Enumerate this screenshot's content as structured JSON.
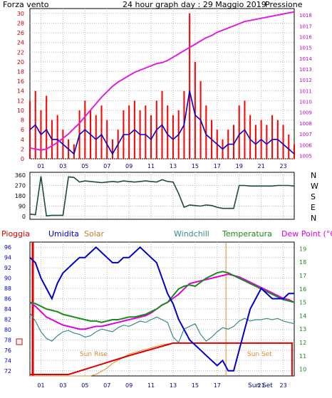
{
  "header": {
    "left_label": "Forza vento",
    "center_title": "24 hour graph day : 29 Maggio 2019",
    "right_label": "Pressione"
  },
  "compass": [
    "N",
    "W",
    "S",
    "E",
    "N"
  ],
  "bottom_legend": {
    "pioggia": "Pioggia",
    "umidita": "Umidita",
    "solar": "Solar",
    "windchill": "Windchill",
    "temperatura": "Temperatura",
    "dewpoint": "Dew Point (°C)"
  },
  "annotations": {
    "sunrise": "Sun Rise",
    "sunset": "Sun Set"
  },
  "colors": {
    "wind": "#ff0000",
    "wind_avg": "#0000cc",
    "pressure": "#e020e0",
    "direction": "#1f4a3a",
    "humidity": "#0000cc",
    "solar": "#e08a30",
    "windchill": "#3a8a8a",
    "temperature": "#1a8a1a",
    "dewpoint": "#e000e0",
    "rain": "#dd0000",
    "frame": "#000000"
  },
  "chart_data": [
    {
      "type": "line",
      "title": "24 hour graph day : 29 Maggio 2019",
      "x_tick_labels": [
        "01",
        "03",
        "05",
        "07",
        "09",
        "11",
        "13",
        "15",
        "17",
        "19",
        "21",
        "23"
      ],
      "y_left": {
        "label": "Forza vento",
        "ticks": [
          "0",
          "2",
          "4",
          "6",
          "8",
          "10",
          "12",
          "14",
          "16",
          "18",
          "20",
          "22",
          "24",
          "26",
          "28",
          "30"
        ],
        "ylim": [
          0,
          31
        ]
      },
      "y_right": {
        "label": "Pressione",
        "ticks": [
          "1005",
          "1006",
          "1007",
          "1008",
          "1009",
          "1010",
          "1011",
          "1012",
          "1013",
          "1014",
          "1015",
          "1016",
          "1017",
          "1018"
        ],
        "ylim": [
          1004.7,
          1018.6
        ]
      },
      "x": [
        0,
        0.5,
        1,
        1.5,
        2,
        2.5,
        3,
        3.5,
        4,
        4.5,
        5,
        5.5,
        6,
        6.5,
        7,
        7.5,
        8,
        8.5,
        9,
        9.5,
        10,
        10.5,
        11,
        11.5,
        12,
        12.5,
        13,
        13.5,
        14,
        14.5,
        15,
        15.5,
        16,
        16.5,
        17,
        17.5,
        18,
        18.5,
        19,
        19.5,
        20,
        20.5,
        21,
        21.5,
        22,
        22.5,
        23,
        23.5,
        24
      ],
      "series": [
        {
          "values": [
            12,
            14,
            10,
            13,
            8,
            9,
            6,
            4,
            3,
            10,
            12,
            10,
            9,
            11,
            8,
            4,
            6,
            10,
            11,
            12,
            10,
            11,
            9,
            12,
            14,
            11,
            9,
            10,
            14,
            30,
            20,
            16,
            11,
            8,
            6,
            4,
            6,
            7,
            11,
            12,
            9,
            7,
            8,
            7,
            9,
            8,
            7,
            5,
            3
          ]
        },
        {
          "values": [
            6,
            7,
            5,
            6,
            4,
            4,
            3,
            2,
            1,
            5,
            6,
            5,
            4,
            5,
            3,
            1,
            3,
            5,
            5,
            6,
            5,
            5,
            4,
            6,
            7,
            5,
            4,
            5,
            7,
            14,
            9,
            8,
            5,
            4,
            3,
            2,
            3,
            3,
            5,
            6,
            4,
            3,
            4,
            3,
            4,
            4,
            3,
            2,
            1
          ]
        },
        {
          "values": [
            1005.7,
            1005.6,
            1005.5,
            1005.6,
            1005.9,
            1006.2,
            1006.6,
            1007.0,
            1007.5,
            1008.0,
            1008.6,
            1009.2,
            1009.8,
            1010.4,
            1010.9,
            1011.4,
            1011.8,
            1012.1,
            1012.4,
            1012.7,
            1012.9,
            1013.1,
            1013.3,
            1013.5,
            1013.6,
            1013.8,
            1014.1,
            1014.4,
            1014.7,
            1015.0,
            1015.3,
            1015.6,
            1015.9,
            1016.1,
            1016.4,
            1016.6,
            1016.8,
            1017.0,
            1017.2,
            1017.4,
            1017.5,
            1017.6,
            1017.7,
            1017.8,
            1017.9,
            1018.0,
            1018.1,
            1018.2,
            1018.3
          ]
        }
      ]
    },
    {
      "type": "line",
      "y_ticks": [
        "0",
        "90",
        "180",
        "270",
        "360"
      ],
      "ylim": [
        0,
        360
      ],
      "x": [
        0,
        0.5,
        1,
        1.5,
        2,
        2.5,
        3,
        3.5,
        4,
        4.5,
        5,
        5.5,
        6,
        6.5,
        7,
        7.5,
        8,
        8.5,
        9,
        9.5,
        10,
        10.5,
        11,
        11.5,
        12,
        12.5,
        13,
        13.5,
        14,
        14.5,
        15,
        15.5,
        16,
        16.5,
        17,
        17.5,
        18,
        18.5,
        19,
        19.5,
        20,
        20.5,
        21,
        21.5,
        22,
        22.5,
        23,
        23.5,
        24
      ],
      "series": [
        {
          "values": [
            20,
            15,
            350,
            5,
            10,
            10,
            10,
            345,
            340,
            300,
            310,
            305,
            300,
            295,
            300,
            305,
            300,
            310,
            305,
            300,
            305,
            310,
            305,
            300,
            320,
            305,
            300,
            200,
            80,
            100,
            95,
            90,
            100,
            95,
            80,
            70,
            70,
            70,
            270,
            270,
            265,
            265,
            265,
            265,
            265,
            270,
            270,
            270,
            265
          ]
        }
      ]
    },
    {
      "type": "line",
      "x_tick_labels": [
        "01",
        "03",
        "05",
        "07",
        "09",
        "11",
        "13",
        "15",
        "17",
        "19",
        "21",
        "23"
      ],
      "y_left_humidity": {
        "ticks": [
          "72",
          "74",
          "76",
          "78",
          "80",
          "82",
          "84",
          "86",
          "88",
          "90",
          "92",
          "94",
          "96"
        ],
        "ylim": [
          71,
          97
        ]
      },
      "y_right_temperature": {
        "ticks": [
          "10",
          "11",
          "12",
          "13",
          "14",
          "15",
          "16",
          "17",
          "18",
          "19"
        ],
        "ylim": [
          9.5,
          19.5
        ]
      },
      "x": [
        0,
        0.5,
        1,
        1.5,
        2,
        2.5,
        3,
        3.5,
        4,
        4.5,
        5,
        5.5,
        6,
        6.5,
        7,
        7.5,
        8,
        8.5,
        9,
        9.5,
        10,
        10.5,
        11,
        11.5,
        12,
        12.5,
        13,
        13.5,
        14,
        14.5,
        15,
        15.5,
        16,
        16.5,
        17,
        17.5,
        18,
        18.5,
        19,
        19.5,
        20,
        20.5,
        21,
        21.5,
        22,
        22.5,
        23,
        23.5,
        24
      ],
      "series": [
        {
          "values": [
            94,
            93,
            90,
            88,
            86,
            89,
            91,
            92,
            93,
            94,
            94,
            95,
            96,
            95,
            94,
            93,
            93,
            94,
            94,
            95,
            96,
            95,
            94,
            93,
            90,
            87,
            85,
            82,
            80,
            78,
            77,
            76,
            75,
            74,
            73,
            74,
            72,
            72,
            76,
            80,
            84,
            86,
            88,
            87,
            86,
            86,
            86,
            87,
            87
          ]
        },
        {
          "values": [
            15.0,
            14.9,
            14.7,
            14.5,
            14.4,
            14.3,
            14.1,
            14.0,
            13.9,
            13.8,
            13.7,
            13.6,
            13.6,
            13.5,
            13.6,
            13.7,
            13.7,
            13.8,
            13.9,
            13.9,
            14.0,
            14.1,
            14.3,
            14.5,
            14.8,
            15.0,
            15.5,
            16.0,
            16.2,
            16.3,
            16.2,
            16.5,
            16.8,
            17.0,
            17.2,
            17.3,
            17.2,
            17.0,
            16.8,
            16.6,
            16.4,
            16.2,
            16.0,
            15.8,
            15.6,
            15.4,
            15.2,
            15.1,
            15.0
          ]
        },
        {
          "values": [
            15.0,
            14.7,
            14.3,
            13.9,
            13.7,
            13.5,
            13.3,
            13.2,
            13.1,
            13.0,
            13.0,
            13.1,
            13.2,
            13.2,
            13.3,
            13.4,
            13.5,
            13.6,
            13.7,
            13.8,
            13.9,
            14.0,
            14.2,
            14.5,
            14.8,
            15.0,
            15.3,
            15.6,
            16.0,
            16.4,
            16.5,
            16.6,
            16.7,
            16.8,
            16.9,
            17.0,
            17.1,
            17.0,
            16.9,
            16.7,
            16.5,
            16.3,
            16.1,
            15.9,
            15.7,
            15.5,
            15.3,
            15.2,
            15.0
          ]
        },
        {
          "values": [
            14.2,
            13.6,
            12.8,
            12.3,
            12.1,
            12.5,
            12.8,
            12.9,
            12.7,
            12.6,
            12.4,
            12.5,
            12.8,
            13.0,
            12.9,
            12.8,
            13.1,
            13.3,
            13.2,
            13.4,
            13.6,
            13.5,
            13.7,
            13.9,
            13.7,
            13.5,
            12.4,
            12.0,
            13.0,
            13.2,
            13.4,
            12.6,
            12.1,
            12.4,
            12.8,
            13.1,
            13.0,
            13.2,
            13.6,
            13.8,
            13.6,
            13.7,
            13.7,
            13.8,
            13.7,
            13.8,
            13.6,
            13.5,
            13.4
          ]
        },
        {
          "values": [
            0,
            0,
            0,
            0,
            0,
            0,
            0,
            0,
            0,
            0,
            0,
            0,
            0,
            0,
            0,
            0,
            0,
            0,
            0,
            0,
            0,
            0,
            0,
            0,
            0,
            0,
            0,
            0,
            0,
            0,
            0,
            0,
            0,
            0,
            0,
            0,
            0,
            0,
            0,
            0,
            0,
            0,
            0,
            0,
            0,
            0,
            0,
            0,
            0
          ]
        },
        {
          "values": [
            0.0,
            0.0,
            0.0,
            0.0,
            0.0,
            0.0,
            0.0,
            0.0,
            0.0,
            0.0,
            0.0,
            0.0,
            0.1,
            0.3,
            0.5,
            0.8,
            1.0,
            1.2,
            1.4,
            1.5,
            1.6,
            1.7,
            1.8,
            1.9,
            2.0,
            2.05,
            2.1,
            2.1,
            2.1,
            2.1,
            2.1,
            2.1,
            2.1,
            2.1,
            2.1,
            2.1,
            2.1,
            2.1,
            2.1,
            2.1,
            2.1,
            2.1,
            2.1,
            2.1,
            2.1,
            2.1,
            2.1,
            2.1,
            2.1
          ]
        }
      ]
    }
  ]
}
